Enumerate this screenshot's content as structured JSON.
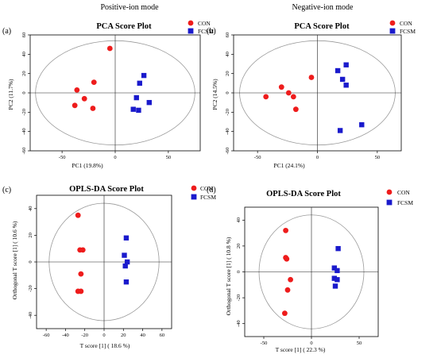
{
  "mode_titles": {
    "left": "Positive-ion mode",
    "right": "Negative-ion mode"
  },
  "colors": {
    "CON": "#ee1c1c",
    "FCSM": "#1a1acc"
  },
  "chart_data": [
    {
      "panel": "(a)",
      "type": "scatter",
      "title": "PCA Score Plot",
      "xlabel": "PC1 (19.8%)",
      "ylabel": "PC2 (11.7%)",
      "xlim": [
        -80,
        80
      ],
      "ylim": [
        -60,
        60
      ],
      "xticks": [
        -50,
        0,
        50
      ],
      "yticks": [
        -60,
        -40,
        -20,
        0,
        20,
        40,
        60
      ],
      "ellipse": {
        "rx": 75,
        "ry": 54
      },
      "legend_position": "top-right",
      "series": [
        {
          "name": "CON",
          "marker": "circle",
          "points": [
            [
              -5,
              46
            ],
            [
              -20,
              11
            ],
            [
              -36,
              3
            ],
            [
              -29,
              -6
            ],
            [
              -21,
              -16
            ],
            [
              -38,
              -13
            ]
          ]
        },
        {
          "name": "FCSM",
          "marker": "square",
          "points": [
            [
              27,
              18
            ],
            [
              23,
              10
            ],
            [
              20,
              -5
            ],
            [
              32,
              -10
            ],
            [
              17,
              -17
            ],
            [
              22,
              -18
            ]
          ]
        }
      ]
    },
    {
      "panel": "(b)",
      "type": "scatter",
      "title": "PCA Score Plot",
      "xlabel": "PC1 (24.1%)",
      "ylabel": "PC2 (14.5%)",
      "xlim": [
        -70,
        70
      ],
      "ylim": [
        -60,
        60
      ],
      "xticks": [
        -50,
        0,
        50
      ],
      "yticks": [
        -60,
        -40,
        -20,
        0,
        20,
        40,
        60
      ],
      "ellipse": {
        "rx": 65,
        "ry": 54
      },
      "legend_position": "top-right",
      "series": [
        {
          "name": "CON",
          "marker": "circle",
          "points": [
            [
              -5,
              16
            ],
            [
              -30,
              6
            ],
            [
              -24,
              0
            ],
            [
              -20,
              -4
            ],
            [
              -43,
              -4
            ],
            [
              -18,
              -17
            ]
          ]
        },
        {
          "name": "FCSM",
          "marker": "square",
          "points": [
            [
              24,
              29
            ],
            [
              17,
              23
            ],
            [
              21,
              14
            ],
            [
              24,
              8
            ],
            [
              37,
              -33
            ],
            [
              19,
              -39
            ]
          ]
        }
      ]
    },
    {
      "panel": "(c)",
      "type": "scatter",
      "title": "OPLS-DA Score Plot",
      "xlabel": "T score [1] ( 18.6 %)",
      "ylabel": "Orthogonal T score [1] ( 10.6 %)",
      "xlim": [
        -70,
        70
      ],
      "ylim": [
        -50,
        50
      ],
      "xticks": [
        -60,
        -40,
        -20,
        0,
        20,
        40,
        60
      ],
      "yticks": [
        -40,
        -20,
        0,
        20,
        40
      ],
      "ellipse": {
        "rx": 57,
        "ry": 44
      },
      "legend_position": "top-right",
      "series": [
        {
          "name": "CON",
          "marker": "circle",
          "points": [
            [
              -27,
              35
            ],
            [
              -25,
              9
            ],
            [
              -22,
              9
            ],
            [
              -24,
              -9
            ],
            [
              -27,
              -22
            ],
            [
              -24,
              -22
            ]
          ]
        },
        {
          "name": "FCSM",
          "marker": "square",
          "points": [
            [
              23,
              18
            ],
            [
              21,
              5
            ],
            [
              24,
              0
            ],
            [
              22,
              -3
            ],
            [
              23,
              -15
            ]
          ]
        }
      ]
    },
    {
      "panel": "(d)",
      "type": "scatter",
      "title": "OPLS-DA Score Plot",
      "xlabel": "T score [1] ( 22.3 %)",
      "ylabel": "Orthogonal T score [1] ( 10.8 %)",
      "xlim": [
        -70,
        70
      ],
      "ylim": [
        -50,
        50
      ],
      "xticks": [
        -50,
        0,
        50
      ],
      "yticks": [
        -40,
        -20,
        0,
        20,
        40
      ],
      "ellipse": {
        "rx": 55,
        "ry": 44
      },
      "legend_position": "top-right",
      "series": [
        {
          "name": "CON",
          "marker": "circle",
          "points": [
            [
              -27,
              32
            ],
            [
              -27,
              11
            ],
            [
              -26,
              10
            ],
            [
              -22,
              -6
            ],
            [
              -25,
              -14
            ],
            [
              -28,
              -32
            ]
          ]
        },
        {
          "name": "FCSM",
          "marker": "square",
          "points": [
            [
              28,
              18
            ],
            [
              24,
              3
            ],
            [
              27,
              1
            ],
            [
              24,
              -5
            ],
            [
              27,
              -6
            ],
            [
              25,
              -11
            ]
          ]
        }
      ]
    }
  ]
}
